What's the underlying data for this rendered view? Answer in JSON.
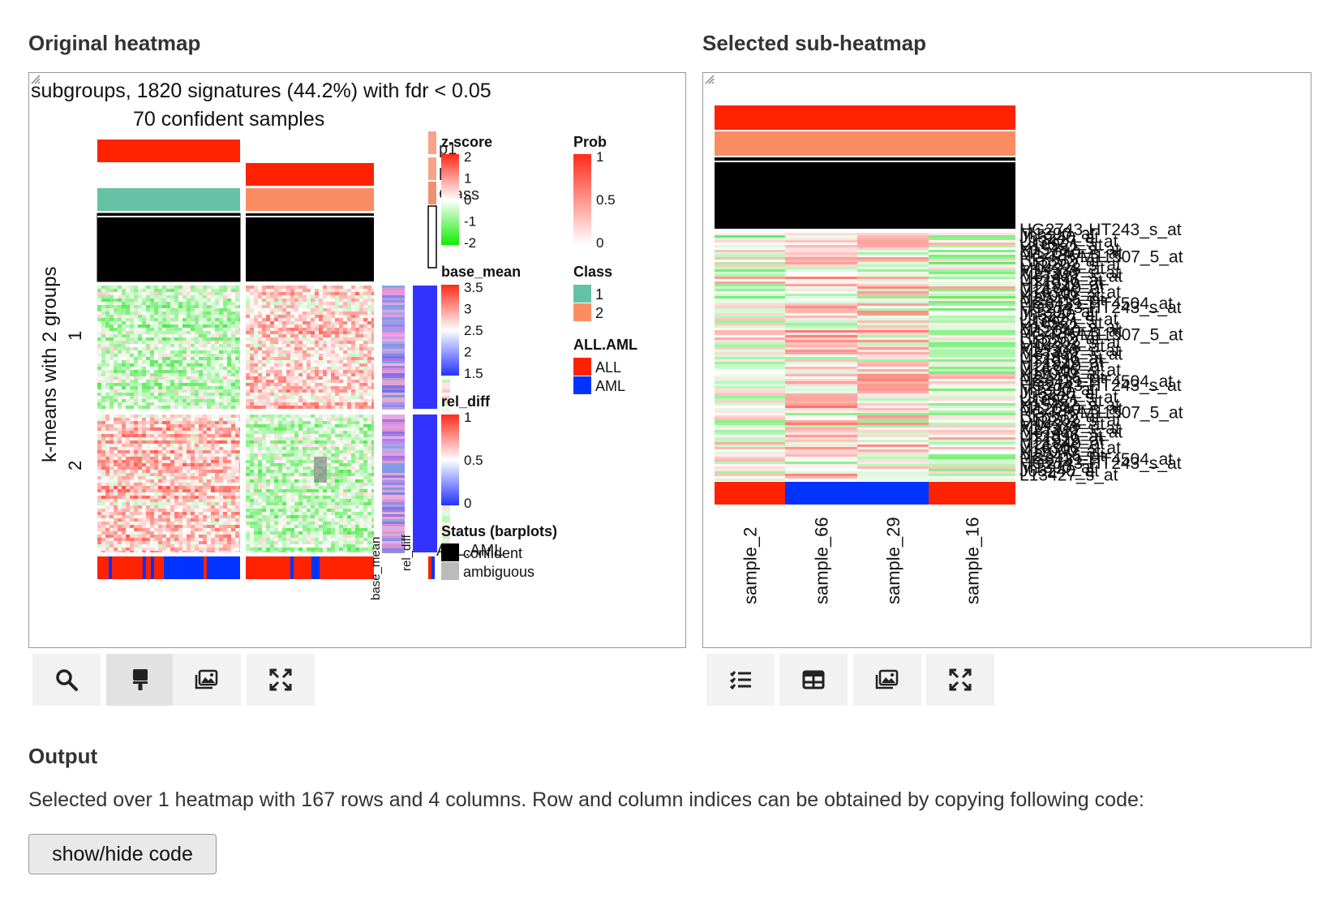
{
  "left": {
    "title": "Original heatmap",
    "heading_line1": "subgroups, 1820 signatures (44.2%) with fdr < 0.05",
    "heading_line2": "70 confident samples",
    "row_title": "k-means with 2 groups",
    "row_groups": [
      "1",
      "2"
    ],
    "barplot_labels": [
      "base_mean",
      "rel_diff"
    ],
    "overlap_text": [
      "p1",
      "p",
      "Class"
    ],
    "legends": {
      "zscore": {
        "title": "z-score",
        "ticks": [
          "2",
          "1",
          "0",
          "-1",
          "-2"
        ]
      },
      "base_mean": {
        "title": "base_mean",
        "ticks": [
          "3.5",
          "3",
          "2.5",
          "2",
          "1.5"
        ]
      },
      "rel_diff": {
        "title": "rel_diff",
        "ticks": [
          "1",
          "0.5",
          "0"
        ]
      },
      "status": {
        "title": "Status (barplots)",
        "items": [
          "confident",
          "ambiguous"
        ],
        "overlap": "ALL.AML"
      },
      "prob": {
        "title": "Prob",
        "ticks": [
          "1",
          "0.5",
          "0"
        ]
      },
      "class": {
        "title": "Class",
        "items": [
          "1",
          "2"
        ]
      },
      "allaml": {
        "title": "ALL.AML",
        "items": [
          "ALL",
          "AML"
        ]
      }
    },
    "toolbar": [
      "search-icon",
      "brush-icon",
      "image-icon",
      "expand-icon"
    ]
  },
  "right": {
    "title": "Selected sub-heatmap",
    "columns": [
      "sample_2",
      "sample_66",
      "sample_29",
      "sample_16"
    ],
    "column_class": [
      "ALL",
      "AML",
      "AML",
      "ALL"
    ],
    "row_labels": [
      "HG2743-HT243_s_at",
      "M1390_at",
      "J03240_at",
      "L13427_s_at",
      "U16921_at",
      "X15482_s_at",
      "M12040_s_at",
      "HG-RR/M11507_5_at",
      "L13852_at",
      "D10202_s_at",
      "M14328_at",
      "X15306_s_at",
      "M31427_s_at",
      "U12896_at",
      "HT1919_at",
      "M21840_at",
      "U16306_s_at",
      "X11040_at",
      "M22416_at",
      "HG3431-HT4504_at"
    ],
    "toolbar": [
      "list-icon",
      "table-icon",
      "image-icon",
      "expand-icon"
    ]
  },
  "colors": {
    "red": "#ff2200",
    "blue": "#0033ff",
    "class1": "#66c2a5",
    "class2": "#fc8d62",
    "heat_red": "#ff3a2a",
    "heat_green": "#22dd11"
  },
  "output": {
    "title": "Output",
    "text": "Selected over 1 heatmap with 167 rows and 4 columns. Row and column indices can be obtained by copying following code:",
    "button": "show/hide code"
  }
}
